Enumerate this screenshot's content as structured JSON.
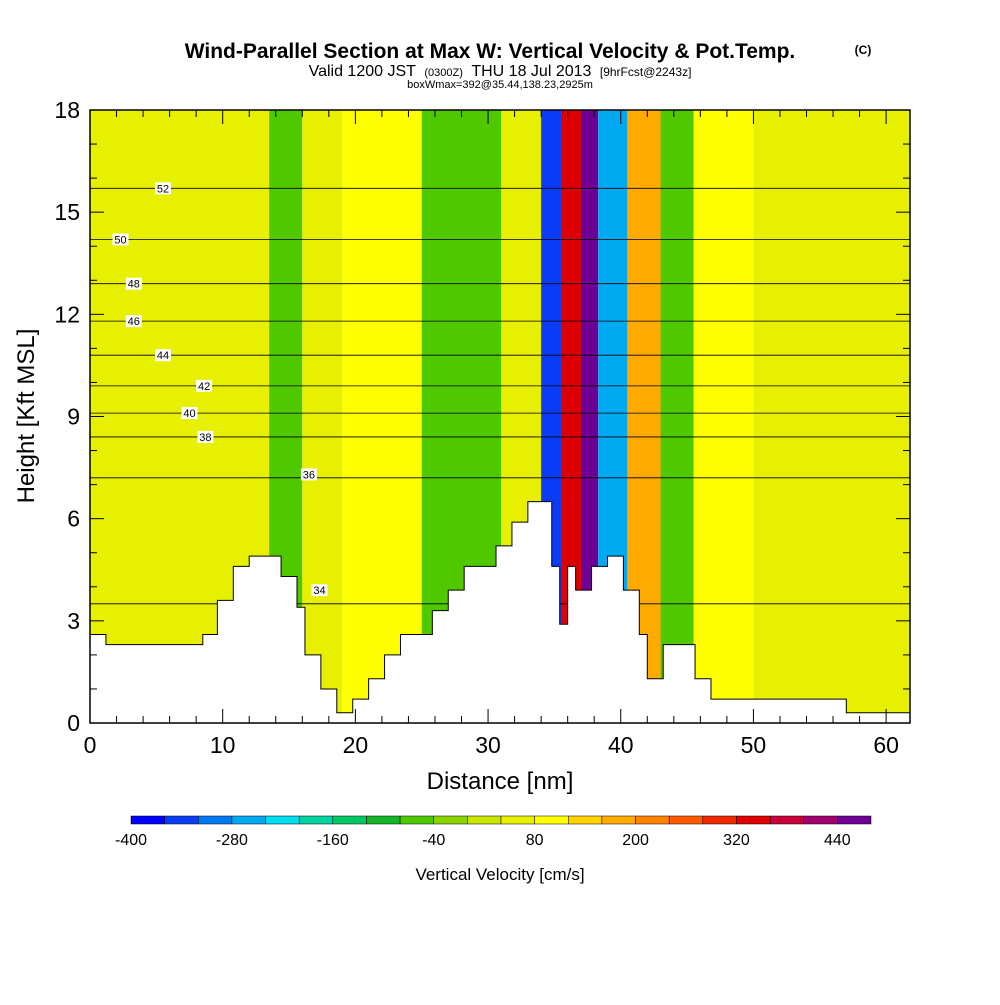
{
  "header": {
    "title": "Wind-Parallel Section at Max W: Vertical Velocity & Pot.Temp.",
    "copyright": "(C)",
    "valid_prefix": "Valid 1200 JST",
    "valid_utc": "(0300Z)",
    "valid_date": "THU 18 Jul 2013",
    "forecast": "[9hrFcst@2243z]",
    "box_info": "boxWmax=392@35.44,138.23,2925m"
  },
  "chart_data": {
    "type": "heatmap",
    "title": "Wind-Parallel Section at Max W: Vertical Velocity & Pot.Temp.",
    "xlabel": "Distance [nm]",
    "ylabel": "Height [Kft MSL]",
    "xlim": [
      0,
      61.8
    ],
    "ylim": [
      0,
      18
    ],
    "x_ticks": [
      "0",
      "10",
      "20",
      "30",
      "40",
      "50",
      "60"
    ],
    "y_ticks": [
      "0",
      "3",
      "6",
      "9",
      "12",
      "15",
      "18"
    ],
    "colorbar": {
      "label": "Vertical Velocity [cm/s]",
      "min": -400,
      "max": 480,
      "step": 40,
      "tick_labels": [
        "-400",
        "-280",
        "-160",
        "-40",
        "80",
        "200",
        "320",
        "440"
      ],
      "colors": [
        "#0000ff",
        "#0a3cf5",
        "#0078f0",
        "#00aaf0",
        "#00dcf0",
        "#00d2a0",
        "#00c864",
        "#14b428",
        "#50c800",
        "#8cd200",
        "#c8e600",
        "#e6f000",
        "#ffff00",
        "#ffd200",
        "#ffaa00",
        "#ff8200",
        "#ff5a00",
        "#f02800",
        "#dc0000",
        "#c8003c",
        "#a0006e",
        "#6e0096"
      ]
    },
    "terrain": [
      [
        0,
        2.6
      ],
      [
        1.2,
        2.6
      ],
      [
        1.2,
        2.3
      ],
      [
        8.5,
        2.3
      ],
      [
        8.5,
        2.6
      ],
      [
        9.6,
        2.6
      ],
      [
        9.6,
        3.6
      ],
      [
        10.8,
        3.6
      ],
      [
        10.8,
        4.6
      ],
      [
        12,
        4.6
      ],
      [
        12,
        4.9
      ],
      [
        14.4,
        4.9
      ],
      [
        14.4,
        4.3
      ],
      [
        15.6,
        4.3
      ],
      [
        15.6,
        3.4
      ],
      [
        16.2,
        3.4
      ],
      [
        16.2,
        2.0
      ],
      [
        17.4,
        2.0
      ],
      [
        17.4,
        1.0
      ],
      [
        18.6,
        1.0
      ],
      [
        18.6,
        0.3
      ],
      [
        19.8,
        0.3
      ],
      [
        19.8,
        0.7
      ],
      [
        21,
        0.7
      ],
      [
        21,
        1.3
      ],
      [
        22.2,
        1.3
      ],
      [
        22.2,
        2.0
      ],
      [
        23.4,
        2.0
      ],
      [
        23.4,
        2.6
      ],
      [
        25.8,
        2.6
      ],
      [
        25.8,
        3.3
      ],
      [
        27,
        3.3
      ],
      [
        27,
        3.9
      ],
      [
        28.2,
        3.9
      ],
      [
        28.2,
        4.6
      ],
      [
        30.6,
        4.6
      ],
      [
        30.6,
        5.2
      ],
      [
        31.8,
        5.2
      ],
      [
        31.8,
        5.9
      ],
      [
        33,
        5.9
      ],
      [
        33,
        6.5
      ],
      [
        34.8,
        6.5
      ],
      [
        34.8,
        4.6
      ],
      [
        35.4,
        4.6
      ],
      [
        35.4,
        2.9
      ],
      [
        36,
        2.9
      ],
      [
        36,
        4.6
      ],
      [
        36.6,
        4.6
      ],
      [
        36.6,
        3.9
      ],
      [
        37.8,
        3.9
      ],
      [
        37.8,
        4.6
      ],
      [
        39,
        4.6
      ],
      [
        39,
        4.9
      ],
      [
        40.2,
        4.9
      ],
      [
        40.2,
        3.9
      ],
      [
        41.4,
        3.9
      ],
      [
        41.4,
        2.6
      ],
      [
        42,
        2.6
      ],
      [
        42,
        1.3
      ],
      [
        43.2,
        1.3
      ],
      [
        43.2,
        2.3
      ],
      [
        45.6,
        2.3
      ],
      [
        45.6,
        1.3
      ],
      [
        46.8,
        1.3
      ],
      [
        46.8,
        0.7
      ],
      [
        57,
        0.7
      ],
      [
        57,
        0.3
      ],
      [
        61.8,
        0.3
      ]
    ],
    "cells": [
      {
        "x": [
          0,
          13.5
        ],
        "v": 60
      },
      {
        "x": [
          13.5,
          16
        ],
        "v": -60
      },
      {
        "x": [
          16,
          19
        ],
        "v": 40
      },
      {
        "x": [
          19,
          25
        ],
        "v": 80
      },
      {
        "x": [
          25,
          31
        ],
        "v": -60
      },
      {
        "x": [
          31,
          34
        ],
        "v": 60
      },
      {
        "x": [
          34,
          35.5
        ],
        "v": -340
      },
      {
        "x": [
          35.5,
          37
        ],
        "v": 320
      },
      {
        "x": [
          37,
          38.3
        ],
        "v": 440
      },
      {
        "x": [
          38.3,
          40.5
        ],
        "v": -260
      },
      {
        "x": [
          40.5,
          43
        ],
        "v": 160
      },
      {
        "x": [
          43,
          45.5
        ],
        "v": -80
      },
      {
        "x": [
          45.5,
          50
        ],
        "v": 80
      },
      {
        "x": [
          50,
          61.8
        ],
        "v": 40
      }
    ],
    "contours": [
      {
        "label": "34",
        "y": 3.5,
        "lx": 17.3,
        "ly": 3.9
      },
      {
        "label": "36",
        "y": 7.2,
        "lx": 16.5,
        "ly": 7.3
      },
      {
        "label": "38",
        "y": 8.4,
        "lx": 8.7,
        "ly": 8.4
      },
      {
        "label": "40",
        "y": 9.1,
        "lx": 7.5,
        "ly": 9.1
      },
      {
        "label": "42",
        "y": 9.9,
        "lx": 8.6,
        "ly": 9.9
      },
      {
        "label": "44",
        "y": 10.8,
        "lx": 5.5,
        "ly": 10.8
      },
      {
        "label": "46",
        "y": 11.8,
        "lx": 3.3,
        "ly": 11.8
      },
      {
        "label": "48",
        "y": 12.9,
        "lx": 3.3,
        "ly": 12.9
      },
      {
        "label": "50",
        "y": 14.2,
        "lx": 2.3,
        "ly": 14.2
      },
      {
        "label": "52",
        "y": 15.7,
        "lx": 5.5,
        "ly": 15.7
      }
    ]
  },
  "colorbar_label": "Vertical Velocity [cm/s]"
}
